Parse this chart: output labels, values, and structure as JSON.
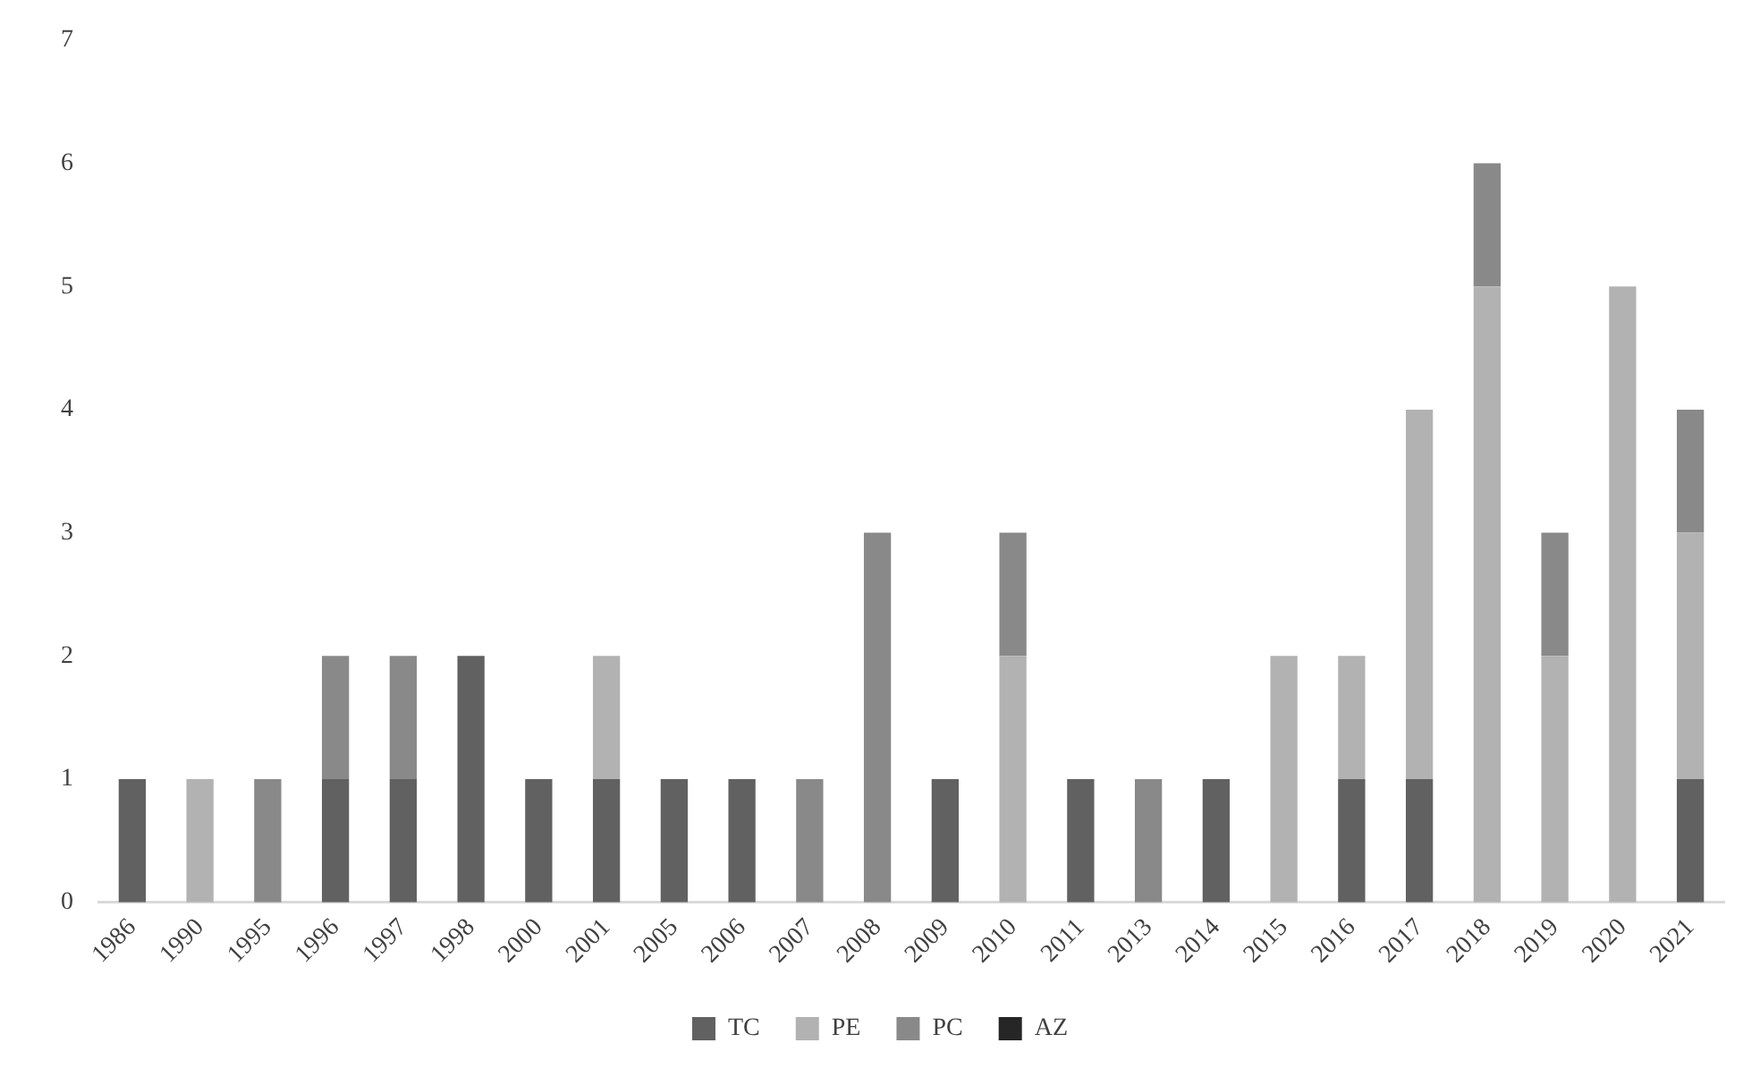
{
  "chart_data": {
    "type": "bar",
    "stacked": true,
    "categories": [
      "1986",
      "1990",
      "1995",
      "1996",
      "1997",
      "1998",
      "2000",
      "2001",
      "2005",
      "2006",
      "2007",
      "2008",
      "2009",
      "2010",
      "2011",
      "2013",
      "2014",
      "2015",
      "2016",
      "2017",
      "2018",
      "2019",
      "2020",
      "2021"
    ],
    "series": [
      {
        "name": "TC",
        "color": "#616161",
        "values": [
          1,
          0,
          0,
          1,
          1,
          2,
          1,
          1,
          1,
          1,
          0,
          0,
          1,
          0,
          1,
          0,
          1,
          0,
          1,
          1,
          0,
          0,
          0,
          1
        ]
      },
      {
        "name": "PE",
        "color": "#b2b2b2",
        "values": [
          0,
          1,
          0,
          0,
          0,
          0,
          0,
          1,
          0,
          0,
          0,
          0,
          0,
          2,
          0,
          0,
          0,
          2,
          1,
          3,
          5,
          2,
          5,
          2
        ]
      },
      {
        "name": "PC",
        "color": "#898989",
        "values": [
          0,
          0,
          1,
          1,
          1,
          0,
          0,
          0,
          0,
          0,
          1,
          3,
          0,
          1,
          0,
          1,
          0,
          0,
          0,
          0,
          1,
          1,
          0,
          1
        ]
      },
      {
        "name": "AZ",
        "color": "#262626",
        "values": [
          0,
          0,
          0,
          0,
          0,
          0,
          0,
          0,
          0,
          0,
          0,
          0,
          0,
          0,
          0,
          0,
          0,
          0,
          0,
          0,
          0,
          0,
          0,
          0
        ]
      }
    ],
    "ylim": [
      0,
      7
    ],
    "yticks": [
      0,
      1,
      2,
      3,
      4,
      5,
      6,
      7
    ],
    "grid": false,
    "legend": "bottom"
  }
}
